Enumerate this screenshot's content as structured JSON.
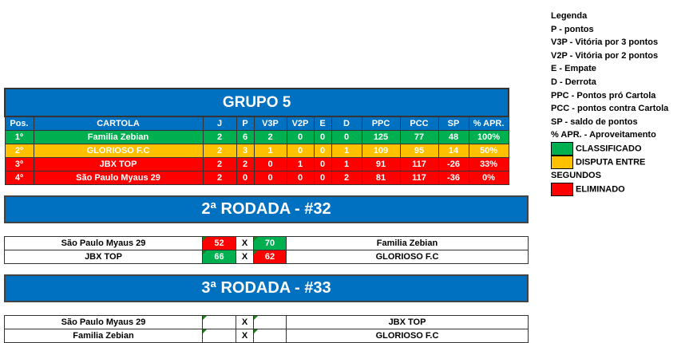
{
  "group": {
    "title": "GRUPO 5",
    "headers": [
      "Pos.",
      "CARTOLA",
      "J",
      "P",
      "V3P",
      "V2P",
      "E",
      "D",
      "PPC",
      "PCC",
      "SP",
      "% APR."
    ],
    "rows": [
      {
        "status": "classificado",
        "cells": [
          "1º",
          "Familia Zebian",
          "2",
          "6",
          "2",
          "0",
          "0",
          "0",
          "125",
          "77",
          "48",
          "100%"
        ]
      },
      {
        "status": "disputa",
        "cells": [
          "2º",
          "GLORIOSO F.C",
          "2",
          "3",
          "1",
          "0",
          "0",
          "1",
          "109",
          "95",
          "14",
          "50%"
        ]
      },
      {
        "status": "eliminado",
        "cells": [
          "3º",
          "JBX TOP",
          "2",
          "2",
          "0",
          "1",
          "0",
          "1",
          "91",
          "117",
          "-26",
          "33%"
        ]
      },
      {
        "status": "eliminado",
        "cells": [
          "4º",
          "São Paulo Myaus 29",
          "2",
          "0",
          "0",
          "0",
          "0",
          "2",
          "81",
          "117",
          "-36",
          "0%"
        ]
      }
    ]
  },
  "legend": {
    "title": "Legenda",
    "items": [
      "P - pontos",
      "V3P - Vitória por 3 pontos",
      "V2P - Vitória por 2 pontos",
      "E - Empate",
      "D - Derrota",
      "PPC - Pontos pró Cartola",
      "PCC - pontos contra Cartola",
      "SP - saldo de pontos",
      "% APR. - Aproveitamento"
    ],
    "colors": [
      {
        "label": "CLASSIFICADO",
        "color": "#00b050"
      },
      {
        "label": "DISPUTA ENTRE SEGUNDOS",
        "color": "#ffc000"
      },
      {
        "label": "ELIMINADO",
        "color": "#ff0000"
      }
    ]
  },
  "rounds": [
    {
      "title": "2ª RODADA - #32",
      "matches": [
        {
          "home": "São Paulo Myaus 29",
          "home_score": "52",
          "sep": "X",
          "away_score": "70",
          "away": "Familia Zebian"
        },
        {
          "home": "JBX TOP",
          "home_score": "66",
          "sep": "X",
          "away_score": "62",
          "away": "GLORIOSO F.C"
        }
      ]
    },
    {
      "title": "3ª RODADA - #33",
      "matches": [
        {
          "home": "São Paulo Myaus 29",
          "home_score": "",
          "sep": "X",
          "away_score": "",
          "away": "JBX TOP"
        },
        {
          "home": "Familia Zebian",
          "home_score": "",
          "sep": "X",
          "away_score": "",
          "away": "GLORIOSO F.C"
        }
      ]
    }
  ]
}
